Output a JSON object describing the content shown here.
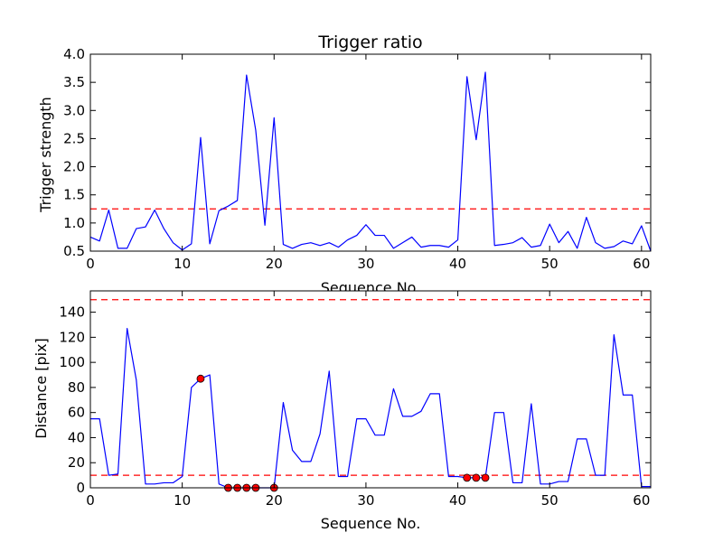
{
  "chart_data": [
    {
      "type": "line",
      "title": "Trigger ratio",
      "xlabel": "Sequence No.",
      "ylabel": "Trigger strength",
      "xlim": [
        0,
        61
      ],
      "ylim": [
        0.5,
        4.0
      ],
      "xticks": [
        0,
        10,
        20,
        30,
        40,
        50,
        60
      ],
      "yticks": [
        0.5,
        1.0,
        1.5,
        2.0,
        2.5,
        3.0,
        3.5,
        4.0
      ],
      "xtick_labels": [
        "0",
        "10",
        "20",
        "30",
        "40",
        "50",
        "60"
      ],
      "ytick_labels": [
        "0.5",
        "1.0",
        "1.5",
        "2.0",
        "2.5",
        "3.0",
        "3.5",
        "4.0"
      ],
      "line_color": "#0000ff",
      "threshold": {
        "value": 1.25,
        "color": "#ff0000",
        "style": "dashed"
      },
      "series": [
        {
          "x": [
            0,
            1,
            2,
            3,
            4,
            5,
            6,
            7,
            8,
            9,
            10,
            11,
            12,
            13,
            14,
            15,
            16,
            17,
            18,
            19,
            20,
            21,
            22,
            23,
            24,
            25,
            26,
            27,
            28,
            29,
            30,
            31,
            32,
            33,
            34,
            35,
            36,
            37,
            38,
            39,
            40,
            41,
            42,
            43,
            44,
            45,
            46,
            47,
            48,
            49,
            50,
            51,
            52,
            53,
            54,
            55,
            56,
            57,
            58,
            59,
            60,
            61
          ],
          "values": [
            0.75,
            0.68,
            1.23,
            0.55,
            0.55,
            0.9,
            0.93,
            1.23,
            0.9,
            0.65,
            0.52,
            0.63,
            2.52,
            0.63,
            1.22,
            1.3,
            1.4,
            3.63,
            2.65,
            0.96,
            2.87,
            0.62,
            0.55,
            0.62,
            0.65,
            0.6,
            0.65,
            0.57,
            0.7,
            0.78,
            0.97,
            0.78,
            0.78,
            0.55,
            0.65,
            0.75,
            0.57,
            0.6,
            0.6,
            0.57,
            0.7,
            3.6,
            2.48,
            3.68,
            0.6,
            0.62,
            0.65,
            0.74,
            0.57,
            0.6,
            0.98,
            0.65,
            0.85,
            0.55,
            1.1,
            0.65,
            0.55,
            0.58,
            0.68,
            0.63,
            0.95,
            0.5
          ]
        }
      ]
    },
    {
      "type": "line",
      "title": "",
      "xlabel": "Sequence No.",
      "ylabel": "Distance [pix]",
      "xlim": [
        0,
        61
      ],
      "ylim": [
        0,
        157
      ],
      "xticks": [
        0,
        10,
        20,
        30,
        40,
        50,
        60
      ],
      "yticks": [
        0,
        20,
        40,
        60,
        80,
        100,
        120,
        140
      ],
      "xtick_labels": [
        "0",
        "10",
        "20",
        "30",
        "40",
        "50",
        "60"
      ],
      "ytick_labels": [
        "0",
        "20",
        "40",
        "60",
        "80",
        "100",
        "120",
        "140"
      ],
      "line_color": "#0000ff",
      "marker_color": "#ff0000",
      "thresholds": [
        {
          "value": 10,
          "color": "#ff0000",
          "style": "dashed"
        },
        {
          "value": 150,
          "color": "#ff0000",
          "style": "dashed"
        }
      ],
      "series": [
        {
          "x": [
            0,
            1,
            2,
            3,
            4,
            5,
            6,
            7,
            8,
            9,
            10,
            11,
            12,
            13,
            14,
            15,
            16,
            17,
            18,
            19,
            20,
            21,
            22,
            23,
            24,
            25,
            26,
            27,
            28,
            29,
            30,
            31,
            32,
            33,
            34,
            35,
            36,
            37,
            38,
            39,
            40,
            41,
            42,
            43,
            44,
            45,
            46,
            47,
            48,
            49,
            50,
            51,
            52,
            53,
            54,
            55,
            56,
            57,
            58,
            59,
            60,
            61
          ],
          "values": [
            55,
            55,
            10,
            11,
            127,
            86,
            3,
            3,
            4,
            4,
            9,
            80,
            87,
            90,
            3,
            0,
            0,
            0,
            0,
            0,
            0,
            68,
            30,
            21,
            21,
            43,
            93,
            9,
            9,
            55,
            55,
            42,
            42,
            79,
            57,
            57,
            61,
            75,
            75,
            9,
            9,
            8,
            8,
            8,
            60,
            60,
            4,
            4,
            67,
            3,
            3,
            5,
            5,
            39,
            39,
            10,
            10,
            122,
            74,
            74,
            1,
            1
          ]
        }
      ],
      "markers": [
        {
          "x": 12,
          "y": 87
        },
        {
          "x": 15,
          "y": 0
        },
        {
          "x": 16,
          "y": 0
        },
        {
          "x": 17,
          "y": 0
        },
        {
          "x": 18,
          "y": 0
        },
        {
          "x": 20,
          "y": 0
        },
        {
          "x": 41,
          "y": 8
        },
        {
          "x": 42,
          "y": 8
        },
        {
          "x": 43,
          "y": 8
        }
      ]
    }
  ]
}
